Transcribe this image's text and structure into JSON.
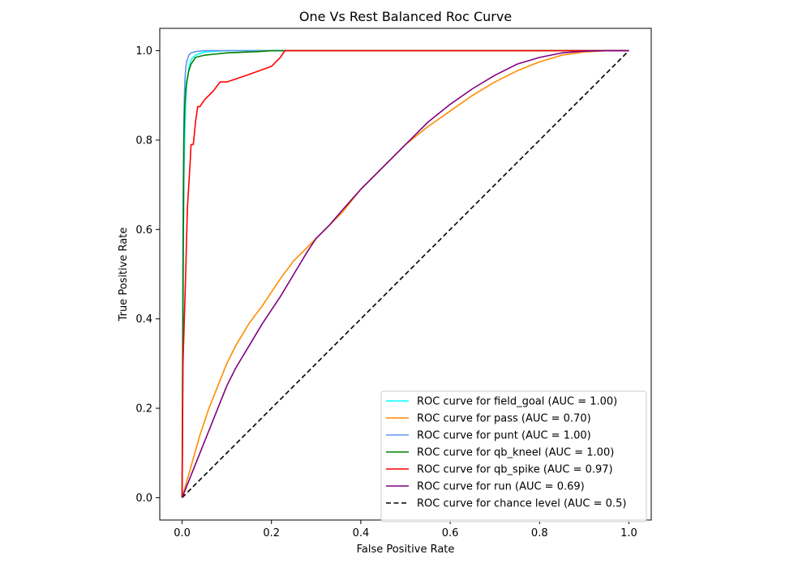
{
  "chart_data": {
    "type": "line",
    "title": "One Vs Rest Balanced Roc Curve",
    "xlabel": "False Positive Rate",
    "ylabel": "True Positive Rate",
    "xlim": [
      -0.05,
      1.05
    ],
    "ylim": [
      -0.05,
      1.05
    ],
    "xticks": [
      0.0,
      0.2,
      0.4,
      0.6,
      0.8,
      1.0
    ],
    "yticks": [
      0.0,
      0.2,
      0.4,
      0.6,
      0.8,
      1.0
    ],
    "xtick_labels": [
      "0.0",
      "0.2",
      "0.4",
      "0.6",
      "0.8",
      "1.0"
    ],
    "ytick_labels": [
      "0.0",
      "0.2",
      "0.4",
      "0.6",
      "0.8",
      "1.0"
    ],
    "grid": false,
    "legend_position": "bottom-right",
    "series": [
      {
        "name": "ROC curve for field_goal (AUC = 1.00)",
        "color": "#00ffff",
        "dashed": false,
        "x": [
          0,
          0.002,
          0.004,
          0.006,
          0.008,
          0.01,
          0.015,
          0.02,
          0.03,
          0.05,
          0.1,
          0.3,
          1
        ],
        "y": [
          0,
          0.5,
          0.72,
          0.82,
          0.88,
          0.92,
          0.96,
          0.98,
          0.99,
          0.997,
          1.0,
          1.0,
          1.0
        ]
      },
      {
        "name": "ROC curve for pass (AUC = 0.70)",
        "color": "#ff8c00",
        "dashed": false,
        "x": [
          0,
          0.02,
          0.04,
          0.06,
          0.08,
          0.1,
          0.12,
          0.15,
          0.18,
          0.2,
          0.22,
          0.25,
          0.28,
          0.3,
          0.33,
          0.36,
          0.4,
          0.45,
          0.5,
          0.55,
          0.6,
          0.65,
          0.7,
          0.75,
          0.8,
          0.85,
          0.9,
          0.95,
          1.0
        ],
        "y": [
          0,
          0.07,
          0.14,
          0.2,
          0.25,
          0.3,
          0.34,
          0.39,
          0.43,
          0.46,
          0.49,
          0.53,
          0.56,
          0.58,
          0.61,
          0.64,
          0.69,
          0.74,
          0.79,
          0.83,
          0.865,
          0.9,
          0.93,
          0.955,
          0.975,
          0.99,
          0.997,
          1.0,
          1.0
        ]
      },
      {
        "name": "ROC curve for punt (AUC = 1.00)",
        "color": "#6495ed",
        "dashed": false,
        "x": [
          0,
          0.002,
          0.004,
          0.006,
          0.008,
          0.01,
          0.015,
          0.02,
          0.03,
          0.05,
          0.1,
          0.3,
          1
        ],
        "y": [
          0,
          0.65,
          0.85,
          0.93,
          0.96,
          0.975,
          0.99,
          0.995,
          0.998,
          1.0,
          1.0,
          1.0,
          1.0
        ]
      },
      {
        "name": "ROC curve for qb_kneel (AUC = 1.00)",
        "color": "#008000",
        "dashed": false,
        "x": [
          0,
          0.002,
          0.004,
          0.006,
          0.008,
          0.01,
          0.015,
          0.02,
          0.03,
          0.05,
          0.07,
          0.1,
          0.17,
          0.2,
          0.3,
          1
        ],
        "y": [
          0,
          0.42,
          0.8,
          0.88,
          0.91,
          0.93,
          0.955,
          0.97,
          0.985,
          0.99,
          0.992,
          0.995,
          0.998,
          1.0,
          1.0,
          1.0
        ]
      },
      {
        "name": "ROC curve for qb_spike (AUC = 0.97)",
        "color": "#ff0000",
        "dashed": false,
        "x": [
          0,
          0.002,
          0.005,
          0.008,
          0.01,
          0.012,
          0.015,
          0.018,
          0.02,
          0.025,
          0.03,
          0.035,
          0.04,
          0.05,
          0.07,
          0.085,
          0.1,
          0.15,
          0.2,
          0.22,
          0.23,
          0.3,
          1.0
        ],
        "y": [
          0,
          0.3,
          0.4,
          0.5,
          0.58,
          0.65,
          0.7,
          0.75,
          0.79,
          0.79,
          0.84,
          0.875,
          0.875,
          0.89,
          0.91,
          0.93,
          0.93,
          0.947,
          0.965,
          0.985,
          1.0,
          1.0,
          1.0
        ]
      },
      {
        "name": "ROC curve for run (AUC = 0.69)",
        "color": "#800080",
        "dashed": false,
        "x": [
          0,
          0.02,
          0.04,
          0.06,
          0.08,
          0.1,
          0.12,
          0.15,
          0.18,
          0.2,
          0.22,
          0.25,
          0.28,
          0.3,
          0.33,
          0.36,
          0.4,
          0.45,
          0.5,
          0.55,
          0.6,
          0.65,
          0.7,
          0.75,
          0.8,
          0.85,
          0.9,
          0.95,
          1.0
        ],
        "y": [
          0,
          0.05,
          0.1,
          0.15,
          0.2,
          0.25,
          0.29,
          0.34,
          0.39,
          0.42,
          0.45,
          0.5,
          0.55,
          0.58,
          0.61,
          0.645,
          0.69,
          0.74,
          0.79,
          0.84,
          0.88,
          0.915,
          0.945,
          0.97,
          0.985,
          0.995,
          0.999,
          1.0,
          1.0
        ]
      },
      {
        "name": "ROC curve for chance level (AUC = 0.5)",
        "color": "#000000",
        "dashed": true,
        "x": [
          0,
          1
        ],
        "y": [
          0,
          1
        ]
      }
    ]
  }
}
